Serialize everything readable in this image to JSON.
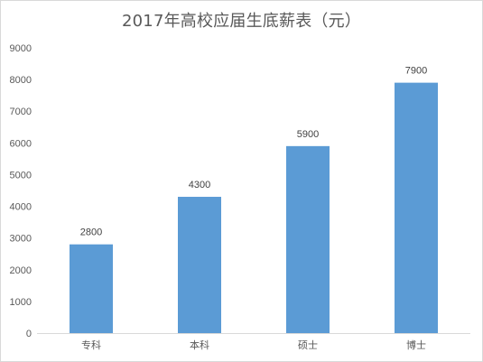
{
  "chart_data": {
    "type": "bar",
    "title": "2017年高校应届生底薪表（元）",
    "categories": [
      "专科",
      "本科",
      "硕士",
      "博士"
    ],
    "values": [
      2800,
      4300,
      5900,
      7900
    ],
    "data_labels": [
      "2800",
      "4300",
      "5900",
      "7900"
    ],
    "xlabel": "",
    "ylabel": "",
    "ylim": [
      0,
      9000
    ],
    "yticks": [
      0,
      1000,
      2000,
      3000,
      4000,
      5000,
      6000,
      7000,
      8000,
      9000
    ],
    "ytick_labels": [
      "0",
      "1000",
      "2000",
      "3000",
      "4000",
      "5000",
      "6000",
      "7000",
      "8000",
      "9000"
    ],
    "grid": false,
    "legend": "none",
    "bar_color": "#5b9bd5"
  }
}
